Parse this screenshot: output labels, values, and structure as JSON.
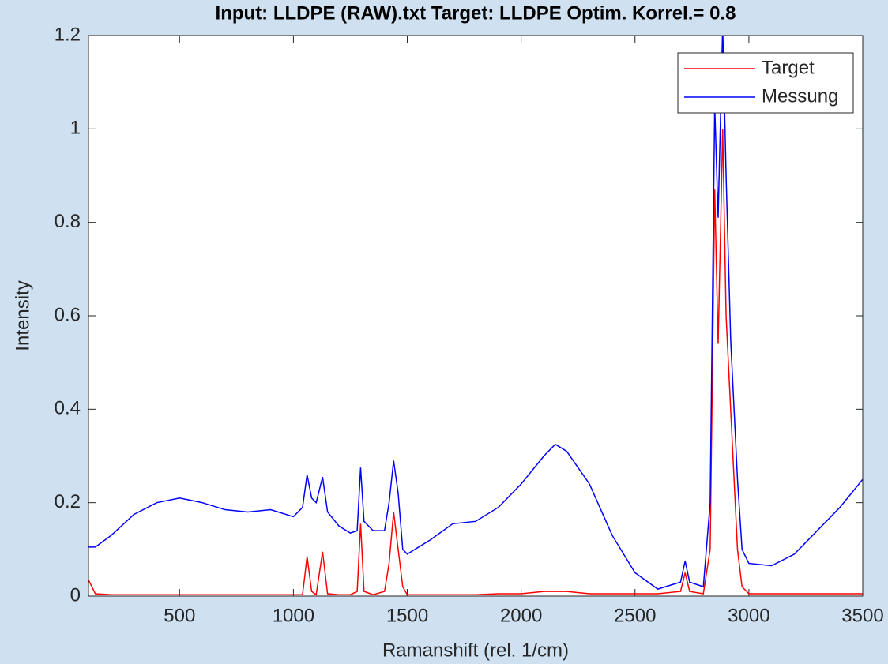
{
  "chart_data": {
    "type": "line",
    "title": "Input: LLDPE (RAW).txt   Target: LLDPE   Optim. Korrel.= 0.8",
    "xlabel": "Ramanshift (rel. 1/cm)",
    "ylabel": "Intensity",
    "x": [
      100,
      130,
      200,
      300,
      400,
      500,
      600,
      700,
      800,
      900,
      1000,
      1040,
      1060,
      1080,
      1100,
      1128,
      1150,
      1200,
      1250,
      1280,
      1295,
      1310,
      1350,
      1400,
      1420,
      1440,
      1460,
      1480,
      1500,
      1600,
      1700,
      1800,
      1900,
      2000,
      2100,
      2150,
      2200,
      2300,
      2400,
      2500,
      2600,
      2700,
      2720,
      2740,
      2800,
      2830,
      2850,
      2865,
      2885,
      2900,
      2920,
      2950,
      2970,
      3000,
      3100,
      3200,
      3300,
      3400,
      3500
    ],
    "series": [
      {
        "name": "Target",
        "color": "#ff0000",
        "values": [
          0.035,
          0.005,
          0.003,
          0.003,
          0.003,
          0.003,
          0.003,
          0.003,
          0.003,
          0.003,
          0.003,
          0.003,
          0.085,
          0.01,
          0.003,
          0.095,
          0.005,
          0.003,
          0.003,
          0.01,
          0.155,
          0.01,
          0.003,
          0.01,
          0.07,
          0.18,
          0.1,
          0.02,
          0.003,
          0.003,
          0.003,
          0.003,
          0.005,
          0.005,
          0.01,
          0.01,
          0.01,
          0.005,
          0.005,
          0.005,
          0.005,
          0.01,
          0.05,
          0.01,
          0.005,
          0.1,
          0.87,
          0.54,
          1.0,
          0.6,
          0.4,
          0.1,
          0.02,
          0.005,
          0.005,
          0.005,
          0.005,
          0.005,
          0.005
        ]
      },
      {
        "name": "Messung",
        "color": "#0000ff",
        "values": [
          0.105,
          0.105,
          0.13,
          0.175,
          0.2,
          0.21,
          0.2,
          0.185,
          0.18,
          0.185,
          0.17,
          0.19,
          0.26,
          0.21,
          0.2,
          0.255,
          0.18,
          0.15,
          0.135,
          0.14,
          0.275,
          0.16,
          0.14,
          0.14,
          0.2,
          0.29,
          0.22,
          0.1,
          0.09,
          0.12,
          0.155,
          0.16,
          0.19,
          0.24,
          0.3,
          0.325,
          0.31,
          0.24,
          0.13,
          0.05,
          0.015,
          0.03,
          0.075,
          0.03,
          0.02,
          0.2,
          1.05,
          0.81,
          1.22,
          0.9,
          0.55,
          0.25,
          0.1,
          0.07,
          0.065,
          0.09,
          0.14,
          0.19,
          0.25
        ]
      }
    ],
    "xlim": [
      100,
      3500
    ],
    "xticks": [
      500,
      1000,
      1500,
      2000,
      2500,
      3000,
      3500
    ],
    "ylim": [
      0,
      1.2
    ],
    "yticks": [
      0,
      0.2,
      0.4,
      0.6,
      0.8,
      1,
      1.2
    ],
    "legend": "northeast"
  }
}
